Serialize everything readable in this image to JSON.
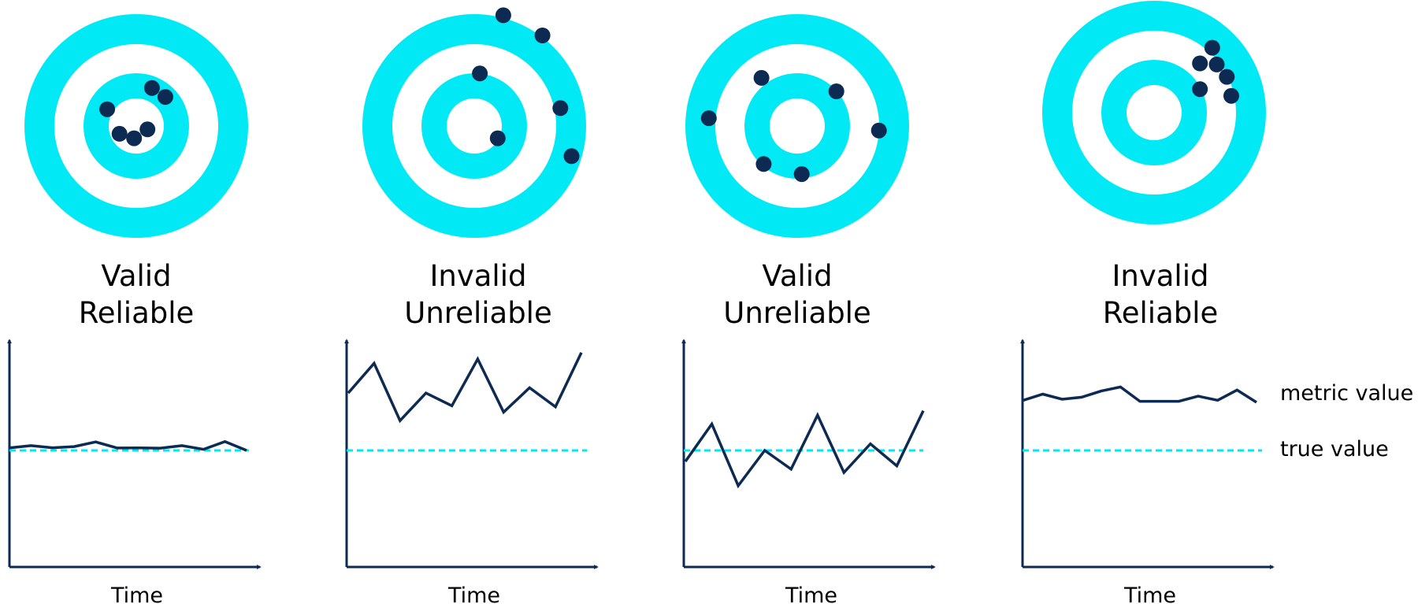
{
  "colors": {
    "accent": "#00e9f5",
    "navy": "#0d2a52",
    "background": "#ffffff"
  },
  "panels": [
    {
      "line1": "Valid",
      "line2": "Reliable",
      "x_label": "Time",
      "metric_series": [
        0.18,
        0.34,
        0.19,
        0.27,
        0.6,
        0.17,
        0.18,
        0.16,
        0.34,
        0.08,
        0.63,
        0.0
      ],
      "target_hits": [
        [
          -0.26,
          0.15
        ],
        [
          0.14,
          0.34
        ],
        [
          0.26,
          0.26
        ],
        [
          -0.15,
          -0.07
        ],
        [
          -0.02,
          -0.11
        ],
        [
          0.1,
          -0.03
        ]
      ]
    },
    {
      "line1": "Invalid",
      "line2": "Unreliable",
      "x_label": "Time",
      "metric_series": [
        2.7,
        4.1,
        1.4,
        2.7,
        2.1,
        4.3,
        1.8,
        2.95,
        2.05,
        4.6
      ],
      "target_hits": [
        [
          0.26,
          0.99
        ],
        [
          0.61,
          0.81
        ],
        [
          0.05,
          0.47
        ],
        [
          0.77,
          0.16
        ],
        [
          0.87,
          -0.27
        ],
        [
          0.21,
          -0.11
        ]
      ]
    },
    {
      "line1": "Valid",
      "line2": "Unreliable",
      "x_label": "Time",
      "metric_series": [
        -0.5,
        1.2,
        -1.6,
        0.0,
        -0.85,
        1.6,
        -1.0,
        0.3,
        -0.7,
        1.8
      ],
      "target_hits": [
        [
          -0.32,
          0.43
        ],
        [
          0.35,
          0.31
        ],
        [
          -0.79,
          0.07
        ],
        [
          0.73,
          -0.04
        ],
        [
          -0.3,
          -0.34
        ],
        [
          0.04,
          -0.43
        ]
      ]
    },
    {
      "line1": "Invalid",
      "line2": "Reliable",
      "x_label": "Time",
      "metric_series": [
        2.45,
        2.75,
        2.5,
        2.6,
        2.9,
        3.1,
        2.4,
        2.4,
        2.4,
        2.65,
        2.45,
        2.95,
        2.35
      ],
      "target_hits": [
        [
          0.52,
          0.58
        ],
        [
          0.41,
          0.44
        ],
        [
          0.56,
          0.43
        ],
        [
          0.65,
          0.32
        ],
        [
          0.41,
          0.21
        ],
        [
          0.69,
          0.15
        ]
      ]
    }
  ],
  "legend": {
    "metric": "metric value",
    "true": "true value"
  }
}
